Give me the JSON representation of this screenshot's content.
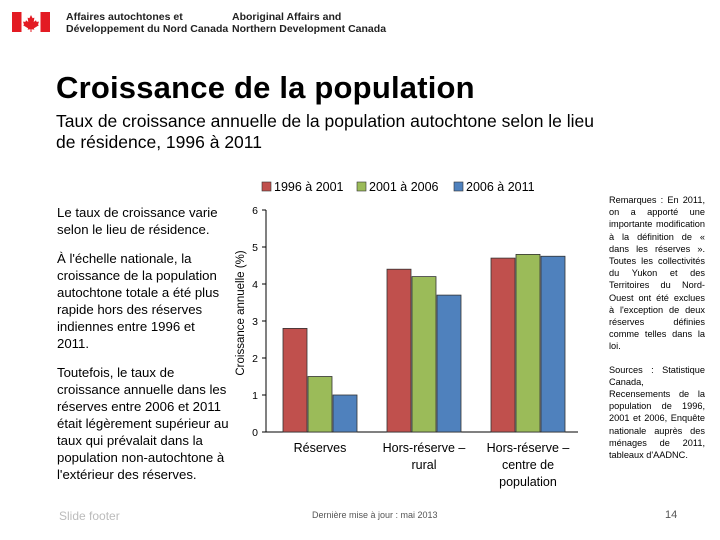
{
  "header": {
    "department_fr": "Affaires autochtones et\nDéveloppement du Nord Canada",
    "department_en": "Aboriginal Affairs and\nNorthern Development Canada"
  },
  "slide": {
    "title": "Croissance de la population",
    "subtitle": "Taux de croissance annuelle de la population autochtone selon le lieu de résidence, 1996 à 2011",
    "left_text": [
      "Le taux de croissance varie selon le lieu de résidence.",
      "À l'échelle nationale, la croissance de la population autochtone totale a été plus rapide hors des réserves indiennes entre 1996 et 2011.",
      "Toutefois, le taux de croissance annuelle dans les réserves entre 2006 et 2011 était légèrement supérieur au taux qui prévalait dans la population non-autochtone à l'extérieur des réserves."
    ],
    "notes": "Remarques : En 2011, on a apporté une importante modification à la définition de « dans les réserves ». Toutes les collectivités du Yukon et des Territoires du Nord-Ouest ont été exclues à l'exception de deux réserves définies comme telles dans la loi.",
    "sources": "Sources : Statistique Canada, Recensements de la population de 1996, 2001 et 2006, Enquête nationale auprès des ménages de 2011, tableaux d'AADNC.",
    "footer_date": "Dernière mise à jour : mai 2013",
    "page_number": "14",
    "footer_ghost": "Slide footer"
  },
  "colors": {
    "series1": "#c0504d",
    "series2": "#9bbb59",
    "series3": "#4f81bd",
    "flag_red": "#e31b23"
  },
  "chart_data": {
    "type": "bar",
    "categories": [
      "Réserves",
      "Hors-réserve – rural",
      "Hors-réserve – centre de population"
    ],
    "series": [
      {
        "name": "1996 à 2001",
        "values": [
          2.8,
          4.4,
          4.7
        ]
      },
      {
        "name": "2001 à 2006",
        "values": [
          1.5,
          4.2,
          4.8
        ]
      },
      {
        "name": "2006 à 2011",
        "values": [
          1.0,
          3.7,
          4.75
        ]
      }
    ],
    "ylabel": "Croissance annuelle (%)",
    "ylim": [
      0,
      6
    ],
    "yticks": [
      0,
      1,
      2,
      3,
      4,
      5,
      6
    ],
    "legend": "top",
    "grid": false
  }
}
